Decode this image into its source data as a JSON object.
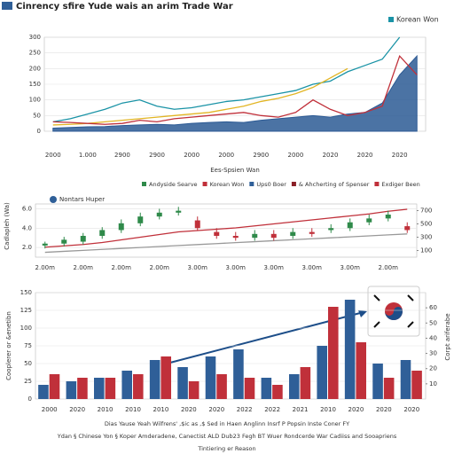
{
  "chart_data": [
    {
      "type": "line",
      "title": "Cinrency sfire Yude wais an arim Trade War",
      "x_label": "Ees-Spsien Wan",
      "categories": [
        "2000",
        null,
        "1.000",
        null,
        "2900",
        null,
        "2900",
        null,
        "2000",
        null,
        "2000",
        null,
        "2900",
        null,
        "2000",
        null,
        "2020",
        null,
        "2020",
        null,
        "2020",
        null
      ],
      "ylim": [
        0,
        300
      ],
      "yticks": [
        0,
        50,
        100,
        150,
        200,
        250,
        300
      ],
      "grid": true,
      "series": [
        {
          "color": "#2c5a94",
          "area": true,
          "values": [
            10,
            12,
            14,
            15,
            18,
            20,
            22,
            20,
            25,
            28,
            30,
            28,
            35,
            40,
            45,
            50,
            45,
            55,
            60,
            90,
            180,
            240
          ]
        },
        {
          "name": "Korean Won",
          "color": "#1a93a6",
          "values": [
            30,
            40,
            55,
            70,
            90,
            100,
            80,
            70,
            75,
            85,
            95,
            100,
            110,
            120,
            130,
            150,
            160,
            190,
            210,
            230,
            300,
            null
          ]
        },
        {
          "color": "#e2b523",
          "values": [
            20,
            22,
            25,
            30,
            35,
            40,
            45,
            50,
            55,
            60,
            70,
            80,
            95,
            105,
            120,
            140,
            170,
            200,
            null,
            null,
            null,
            null
          ]
        },
        {
          "color": "#c0303a",
          "values": [
            30,
            28,
            25,
            22,
            25,
            35,
            30,
            40,
            45,
            50,
            55,
            60,
            50,
            45,
            60,
            100,
            70,
            50,
            60,
            80,
            240,
            180
          ]
        }
      ]
    },
    {
      "type": "candlestick",
      "y_label": "Cadlapleh (Wa)",
      "inset_label": "Nontars Huper",
      "legend": [
        {
          "name": "Andyside Searve",
          "color": "#2f8a4a"
        },
        {
          "name": "Korean Won",
          "color": "#c0303a"
        },
        {
          "name": "Ups0 Boer",
          "color": "#2f5f98"
        },
        {
          "name": "& Ahcherting of Spenser",
          "color": "#8a1f27"
        },
        {
          "name": "Exdiger Been",
          "color": "#c0303a"
        }
      ],
      "categories": [
        "2.00m",
        null,
        "2.00m",
        null,
        "2.00m",
        null,
        "2.00m",
        null,
        "3.00m",
        null,
        "3.00m",
        null,
        "3.00m",
        null,
        "3.00m",
        null,
        "3.00m",
        null,
        "2.00m",
        null
      ],
      "ylim": [
        1,
        6.5
      ],
      "yticks": [
        {
          "value": 2,
          "label": "2.0"
        },
        {
          "value": 4,
          "label": "4.0"
        },
        {
          "value": 6,
          "label": "6.0"
        }
      ],
      "y2lim": [
        0,
        800
      ],
      "y2ticks": [
        100,
        300,
        500,
        700
      ],
      "grid": true,
      "up_color": "#2f8a4a",
      "down_color": "#c0303a",
      "open": [
        2.2,
        2.4,
        2.6,
        3.2,
        3.8,
        4.5,
        5.2,
        5.6,
        4.8,
        3.6,
        3.2,
        3.0,
        3.4,
        3.2,
        3.6,
        3.8,
        4.0,
        4.6,
        5.0,
        4.2
      ],
      "high": [
        2.6,
        3.1,
        3.5,
        4.1,
        4.9,
        5.6,
        6.0,
        6.2,
        5.2,
        4.0,
        3.6,
        3.8,
        3.8,
        4.0,
        4.0,
        4.4,
        5.0,
        5.4,
        5.8,
        4.6
      ],
      "low": [
        1.9,
        2.1,
        2.3,
        2.9,
        3.5,
        4.2,
        4.9,
        5.3,
        3.7,
        2.9,
        2.7,
        2.7,
        2.7,
        2.9,
        3.1,
        3.5,
        3.7,
        4.3,
        4.7,
        3.5
      ],
      "close": [
        2.4,
        2.8,
        3.2,
        3.8,
        4.5,
        5.2,
        5.6,
        5.8,
        4.0,
        3.2,
        3.0,
        3.4,
        3.0,
        3.6,
        3.4,
        4.0,
        4.6,
        5.0,
        5.4,
        3.8
      ],
      "series": [
        {
          "color": "#c0303a",
          "axis": "y2",
          "values": [
            150,
            170,
            190,
            220,
            260,
            300,
            340,
            380,
            400,
            420,
            440,
            470,
            500,
            530,
            560,
            590,
            620,
            650,
            690,
            720
          ]
        },
        {
          "color": "#999999",
          "values": [
            1.5,
            1.6,
            1.7,
            1.8,
            1.9,
            2.0,
            2.1,
            2.2,
            2.3,
            2.4,
            2.5,
            2.6,
            2.7,
            2.8,
            2.9,
            3.0,
            3.1,
            3.2,
            3.3,
            3.4
          ]
        }
      ]
    },
    {
      "type": "bar",
      "y_label": "Cooplerer or &enetibn",
      "y2_label": "Corpt ariferabe",
      "categories": [
        "2000",
        "2020",
        "2010",
        "2010",
        "2010",
        "2020",
        "2020",
        "2022",
        "2022",
        "2021",
        "2010",
        "2020",
        "2020",
        "2020"
      ],
      "ylim": [
        0,
        150
      ],
      "yticks": [
        0,
        25,
        50,
        75,
        100,
        125,
        150
      ],
      "y2lim": [
        0,
        70
      ],
      "y2ticks": [
        10,
        20,
        30,
        40,
        50,
        60
      ],
      "grid": true,
      "series": [
        {
          "color": "#2f5f98",
          "values": [
            20,
            25,
            30,
            40,
            55,
            45,
            60,
            70,
            30,
            35,
            75,
            140,
            50,
            55
          ]
        },
        {
          "color": "#c0303a",
          "values": [
            35,
            30,
            30,
            35,
            60,
            25,
            35,
            30,
            20,
            45,
            130,
            80,
            30,
            40
          ]
        }
      ],
      "footer": [
        "Dias Yause Yeah Wilfrens' ,$ic as  ,$ Sed in Haen Anglinn  Insrf P Popsin Inste Coner FY",
        "Ydan § Chinese Yon  § Koper Amderadene, Canectist  ALD Dub23 Fegh BT Wuer  Rondcerde War Cadiiss and Sooapriens",
        "Tintiering er Reason"
      ]
    }
  ]
}
